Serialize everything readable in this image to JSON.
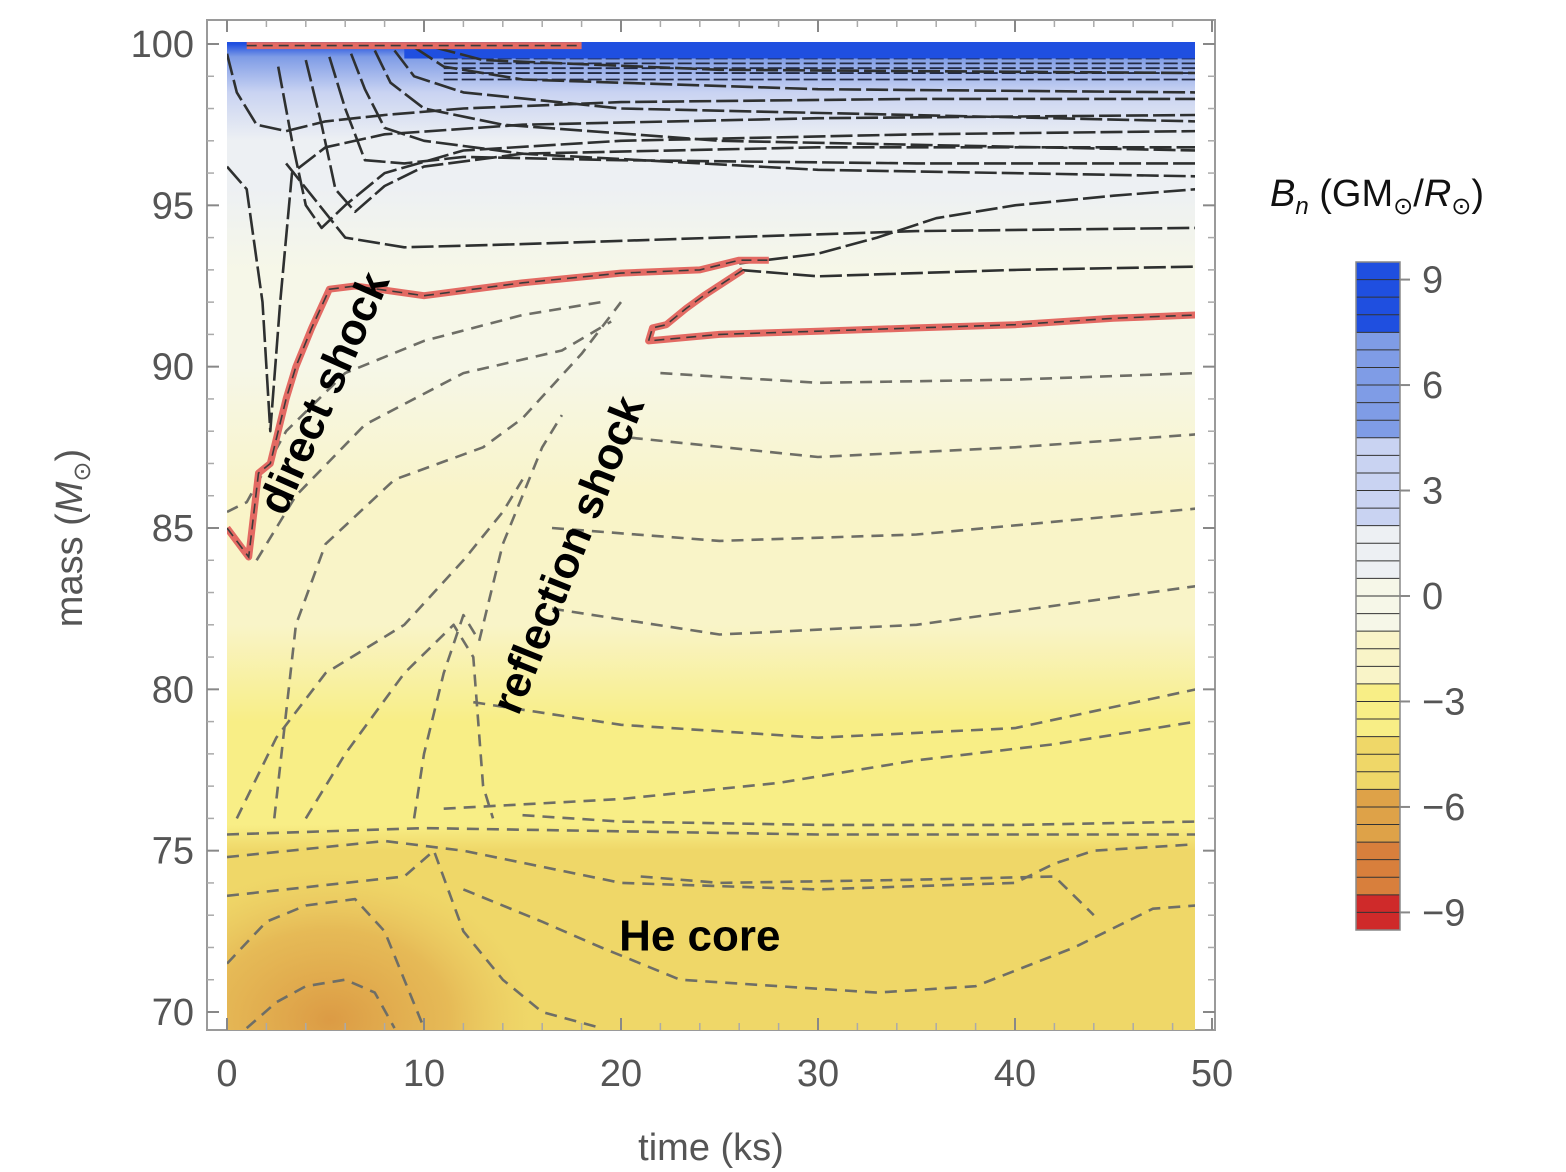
{
  "chart_data": {
    "type": "heatmap",
    "subtype": "filled-contour",
    "xlabel": "time (ks)",
    "ylabel_parts": [
      "mass (",
      "M",
      "⊙",
      ")"
    ],
    "xlim": [
      0,
      50
    ],
    "ylim": [
      69.5,
      100
    ],
    "data_xmax": 49.2,
    "xticks": [
      0,
      10,
      20,
      30,
      40,
      50
    ],
    "xtick_labels": [
      "0",
      "10",
      "20",
      "30",
      "40",
      "50"
    ],
    "yticks": [
      70,
      75,
      80,
      85,
      90,
      95,
      100
    ],
    "ytick_labels": [
      "70",
      "75",
      "80",
      "85",
      "90",
      "95",
      "100"
    ],
    "colorbar": {
      "title_parts": [
        "B",
        "n",
        " (GM",
        "⊙",
        "/",
        "R",
        "⊙",
        ")"
      ],
      "range": [
        -9.5,
        9.5
      ],
      "ticks": [
        9,
        6,
        3,
        0,
        -3,
        -6,
        -9
      ],
      "tick_labels": [
        "9",
        "6",
        "3",
        "0",
        "−3",
        "−6",
        "−9"
      ],
      "color_stops": [
        {
          "value": 9.5,
          "color": "#1f4fe0"
        },
        {
          "value": 6,
          "color": "#7f9ce6"
        },
        {
          "value": 3,
          "color": "#c9d3f2"
        },
        {
          "value": 0.6,
          "color": "#edf0f3"
        },
        {
          "value": 0,
          "color": "#f6f7e8"
        },
        {
          "value": -1.5,
          "color": "#f9f4c8"
        },
        {
          "value": -3,
          "color": "#f8ee86"
        },
        {
          "value": -4.5,
          "color": "#efd768"
        },
        {
          "value": -6,
          "color": "#dea248"
        },
        {
          "value": -7.5,
          "color": "#d87f3c"
        },
        {
          "value": -9.5,
          "color": "#cf2a2a"
        }
      ]
    },
    "shock_color": "#e36a63",
    "positive_contours": [
      {
        "label": "c1",
        "points": [
          [
            0,
            99.7
          ],
          [
            0.5,
            98.5
          ],
          [
            1.5,
            97.5
          ],
          [
            3,
            97.3
          ],
          [
            5,
            97.6
          ],
          [
            8,
            97.8
          ],
          [
            12,
            98.0
          ],
          [
            20,
            98.2
          ],
          [
            35,
            98.3
          ],
          [
            49.2,
            98.3
          ]
        ]
      },
      {
        "label": "c2",
        "points": [
          [
            0,
            96.2
          ],
          [
            1,
            95.5
          ],
          [
            1.8,
            92
          ],
          [
            2.2,
            88
          ],
          [
            2.7,
            92
          ],
          [
            3.3,
            96.0
          ],
          [
            5,
            96.8
          ],
          [
            8,
            97.2
          ],
          [
            15,
            97.5
          ],
          [
            30,
            97.7
          ],
          [
            49.2,
            97.8
          ]
        ]
      },
      {
        "label": "c3",
        "points": [
          [
            2.6,
            99.3
          ],
          [
            3.3,
            97
          ],
          [
            4,
            95
          ],
          [
            4.8,
            94.3
          ],
          [
            6,
            95.0
          ],
          [
            8,
            96.0
          ],
          [
            12,
            96.7
          ],
          [
            20,
            97.0
          ],
          [
            35,
            97.2
          ],
          [
            49.2,
            97.3
          ]
        ]
      },
      {
        "label": "c4",
        "points": [
          [
            4,
            99.5
          ],
          [
            4.8,
            97.5
          ],
          [
            5.5,
            95.5
          ],
          [
            6.5,
            94.8
          ],
          [
            8,
            95.6
          ],
          [
            10,
            96.2
          ],
          [
            15,
            96.6
          ],
          [
            30,
            96.8
          ],
          [
            49.2,
            96.8
          ]
        ]
      },
      {
        "label": "c5",
        "points": [
          [
            5.2,
            99.6
          ],
          [
            6,
            98
          ],
          [
            7,
            96.4
          ],
          [
            9,
            96.3
          ],
          [
            12,
            96.5
          ],
          [
            20,
            96.4
          ],
          [
            35,
            96.3
          ],
          [
            49.2,
            96.3
          ]
        ]
      },
      {
        "label": "c6",
        "points": [
          [
            6.3,
            99.7
          ],
          [
            7,
            98.6
          ],
          [
            8,
            97.4
          ],
          [
            10,
            97.0
          ],
          [
            15,
            96.6
          ],
          [
            30,
            96.1
          ],
          [
            49.2,
            95.9
          ]
        ]
      },
      {
        "label": "c7",
        "points": [
          [
            7.5,
            99.8
          ],
          [
            8.3,
            98.8
          ],
          [
            10,
            98.0
          ],
          [
            14,
            97.5
          ],
          [
            25,
            97.0
          ],
          [
            49.2,
            96.7
          ]
        ]
      },
      {
        "label": "c8",
        "points": [
          [
            8.5,
            99.8
          ],
          [
            9.5,
            99.0
          ],
          [
            12,
            98.5
          ],
          [
            20,
            98.0
          ],
          [
            49.2,
            97.6
          ]
        ]
      },
      {
        "label": "c9",
        "points": [
          [
            9.5,
            99.9
          ],
          [
            11,
            99.3
          ],
          [
            15,
            98.9
          ],
          [
            30,
            98.6
          ],
          [
            49.2,
            98.5
          ]
        ]
      },
      {
        "label": "c10",
        "points": [
          [
            10.5,
            99.9
          ],
          [
            13,
            99.5
          ],
          [
            25,
            99.2
          ],
          [
            49.2,
            99.1
          ]
        ]
      },
      {
        "label": "c11",
        "points": [
          [
            3,
            96.3
          ],
          [
            6,
            94.0
          ],
          [
            9,
            93.7
          ],
          [
            15,
            93.8
          ],
          [
            25,
            94.0
          ],
          [
            35,
            94.2
          ],
          [
            49.2,
            94.3
          ]
        ]
      },
      {
        "label": "c12",
        "points": [
          [
            26,
            93.2
          ],
          [
            30,
            93.5
          ],
          [
            33,
            94.0
          ],
          [
            36,
            94.6
          ],
          [
            40,
            95.0
          ],
          [
            45,
            95.3
          ],
          [
            49.2,
            95.5
          ]
        ]
      },
      {
        "label": "c13",
        "points": [
          [
            26,
            93.0
          ],
          [
            30,
            92.8
          ],
          [
            40,
            93.0
          ],
          [
            49.2,
            93.1
          ]
        ]
      }
    ],
    "upper_grid_positions": [
      98.9,
      99.1,
      99.25,
      99.4,
      99.55,
      99.7,
      99.85
    ],
    "shock_fronts": [
      {
        "name": "direct-shock",
        "points": [
          [
            0,
            85.0
          ],
          [
            1.1,
            84.1
          ],
          [
            1.6,
            86.7
          ],
          [
            2.2,
            87.0
          ],
          [
            2.6,
            88.0
          ],
          [
            3.0,
            89.0
          ],
          [
            3.5,
            90.0
          ],
          [
            4.3,
            91.2
          ],
          [
            5.2,
            92.4
          ],
          [
            6.5,
            92.5
          ],
          [
            10,
            92.2
          ],
          [
            15,
            92.6
          ],
          [
            20,
            92.9
          ],
          [
            24,
            93.0
          ],
          [
            26,
            93.3
          ],
          [
            27.5,
            93.3
          ]
        ]
      },
      {
        "name": "reflection-shock",
        "points": [
          [
            26.2,
            93.0
          ],
          [
            25.2,
            92.6
          ],
          [
            24.2,
            92.2
          ],
          [
            23.3,
            91.8
          ],
          [
            22.3,
            91.3
          ],
          [
            21.6,
            91.2
          ],
          [
            21.4,
            90.8
          ],
          [
            25,
            91.0
          ],
          [
            30,
            91.1
          ],
          [
            35,
            91.2
          ],
          [
            40,
            91.3
          ],
          [
            45,
            91.5
          ],
          [
            49.2,
            91.6
          ]
        ]
      },
      {
        "name": "surface-1",
        "points": [
          [
            1.0,
            99.95
          ],
          [
            18.0,
            99.95
          ]
        ]
      }
    ],
    "negative_contours": [
      {
        "label": "n1",
        "points": [
          [
            0,
            85.5
          ],
          [
            1,
            85.8
          ],
          [
            3,
            88.0
          ],
          [
            6,
            89.8
          ],
          [
            10,
            90.8
          ],
          [
            15,
            91.6
          ],
          [
            19,
            92.0
          ]
        ]
      },
      {
        "label": "n2",
        "points": [
          [
            1.5,
            84.0
          ],
          [
            3.5,
            86.0
          ],
          [
            7,
            88.2
          ],
          [
            12,
            89.8
          ],
          [
            17,
            90.5
          ],
          [
            19.5,
            91.4
          ]
        ]
      },
      {
        "label": "n3",
        "points": [
          [
            2.4,
            76.0
          ],
          [
            3.5,
            82.0
          ],
          [
            5,
            84.5
          ],
          [
            8.5,
            86.5
          ],
          [
            13,
            87.5
          ],
          [
            15,
            88.4
          ],
          [
            18,
            90.4
          ],
          [
            20,
            92.0
          ]
        ]
      },
      {
        "label": "n4",
        "points": [
          [
            22,
            89.8
          ],
          [
            30,
            89.5
          ],
          [
            40,
            89.6
          ],
          [
            49.2,
            89.8
          ]
        ]
      },
      {
        "label": "n5",
        "points": [
          [
            20.5,
            87.8
          ],
          [
            30,
            87.2
          ],
          [
            40,
            87.5
          ],
          [
            49.2,
            87.9
          ]
        ]
      },
      {
        "label": "n6",
        "points": [
          [
            16.5,
            85.0
          ],
          [
            25,
            84.6
          ],
          [
            35,
            84.8
          ],
          [
            49.2,
            85.6
          ]
        ]
      },
      {
        "label": "n7",
        "points": [
          [
            16.5,
            82.5
          ],
          [
            25,
            81.7
          ],
          [
            35,
            82.0
          ],
          [
            49.2,
            83.2
          ]
        ]
      },
      {
        "label": "n8",
        "points": [
          [
            12.5,
            79.6
          ],
          [
            20,
            78.9
          ],
          [
            30,
            78.5
          ],
          [
            40,
            78.8
          ],
          [
            49.2,
            80.0
          ]
        ]
      },
      {
        "label": "n9",
        "points": [
          [
            11,
            76.3
          ],
          [
            20,
            76.6
          ],
          [
            28,
            77.1
          ],
          [
            35,
            77.8
          ],
          [
            42,
            78.3
          ],
          [
            49.2,
            79.0
          ]
        ]
      },
      {
        "label": "n10",
        "points": [
          [
            0.5,
            76.0
          ],
          [
            2.5,
            78.5
          ],
          [
            5,
            80.5
          ],
          [
            9,
            82.0
          ],
          [
            12,
            84.0
          ],
          [
            14,
            85.5
          ],
          [
            15,
            86.5
          ]
        ]
      },
      {
        "label": "n11",
        "points": [
          [
            4,
            76.0
          ],
          [
            6,
            78.0
          ],
          [
            9,
            80.5
          ],
          [
            11.5,
            82.0
          ],
          [
            12.5,
            81.0
          ],
          [
            13,
            77.0
          ],
          [
            13.5,
            76.0
          ]
        ]
      },
      {
        "label": "n12",
        "points": [
          [
            9.5,
            76.0
          ],
          [
            10,
            78.0
          ],
          [
            11,
            80.5
          ],
          [
            12,
            82.3
          ],
          [
            12.8,
            81.5
          ],
          [
            14,
            84.5
          ],
          [
            15,
            86.0
          ],
          [
            16,
            87.5
          ],
          [
            17,
            88.5
          ]
        ]
      },
      {
        "label": "n13",
        "points": [
          [
            15,
            76.1
          ],
          [
            20,
            75.9
          ],
          [
            30,
            75.8
          ],
          [
            40,
            75.8
          ],
          [
            49.2,
            75.9
          ]
        ]
      },
      {
        "label": "n14",
        "points": [
          [
            0,
            75.5
          ],
          [
            10,
            75.7
          ],
          [
            20,
            75.6
          ],
          [
            30,
            75.5
          ],
          [
            49.2,
            75.5
          ]
        ]
      },
      {
        "label": "n15",
        "points": [
          [
            0,
            74.8
          ],
          [
            8,
            75.3
          ],
          [
            12,
            75.0
          ],
          [
            20,
            74.0
          ],
          [
            30,
            73.8
          ],
          [
            40,
            74.0
          ],
          [
            42,
            74.6
          ],
          [
            44,
            75.0
          ],
          [
            49.2,
            75.2
          ]
        ]
      },
      {
        "label": "n16",
        "points": [
          [
            0,
            73.6
          ],
          [
            3,
            73.8
          ],
          [
            6,
            74.0
          ],
          [
            9,
            74.2
          ],
          [
            10.5,
            75.0
          ],
          [
            12,
            72.5
          ],
          [
            14,
            71.0
          ],
          [
            16,
            70.0
          ],
          [
            19,
            69.5
          ]
        ]
      },
      {
        "label": "n17",
        "points": [
          [
            0,
            71.5
          ],
          [
            2,
            72.8
          ],
          [
            4,
            73.3
          ],
          [
            6.5,
            73.5
          ],
          [
            8,
            72.5
          ],
          [
            9,
            71.0
          ],
          [
            10,
            69.5
          ]
        ]
      },
      {
        "label": "n18",
        "points": [
          [
            1,
            69.5
          ],
          [
            2.5,
            70.3
          ],
          [
            4,
            70.8
          ],
          [
            6,
            71.0
          ],
          [
            7.5,
            70.6
          ],
          [
            8.5,
            69.5
          ]
        ]
      },
      {
        "label": "n19",
        "points": [
          [
            12,
            73.8
          ],
          [
            16,
            72.8
          ],
          [
            19,
            72.0
          ],
          [
            23,
            71.0
          ],
          [
            28,
            70.8
          ],
          [
            33,
            70.6
          ],
          [
            38,
            70.8
          ],
          [
            43,
            72.0
          ],
          [
            47,
            73.2
          ],
          [
            49.2,
            73.3
          ]
        ]
      },
      {
        "label": "n20",
        "points": [
          [
            21,
            74.2
          ],
          [
            25,
            74.0
          ],
          [
            35,
            74.1
          ],
          [
            42,
            74.2
          ],
          [
            43,
            73.6
          ],
          [
            44,
            73.0
          ]
        ]
      }
    ],
    "annotations": [
      {
        "text": "direct shock",
        "x": 5.6,
        "y": 89.0,
        "rotate": -66
      },
      {
        "text": "reflection shock",
        "x": 18.0,
        "y": 84.0,
        "rotate": -68
      },
      {
        "text": "He core",
        "x": 24.0,
        "y": 71.9,
        "rotate": 0
      }
    ]
  }
}
